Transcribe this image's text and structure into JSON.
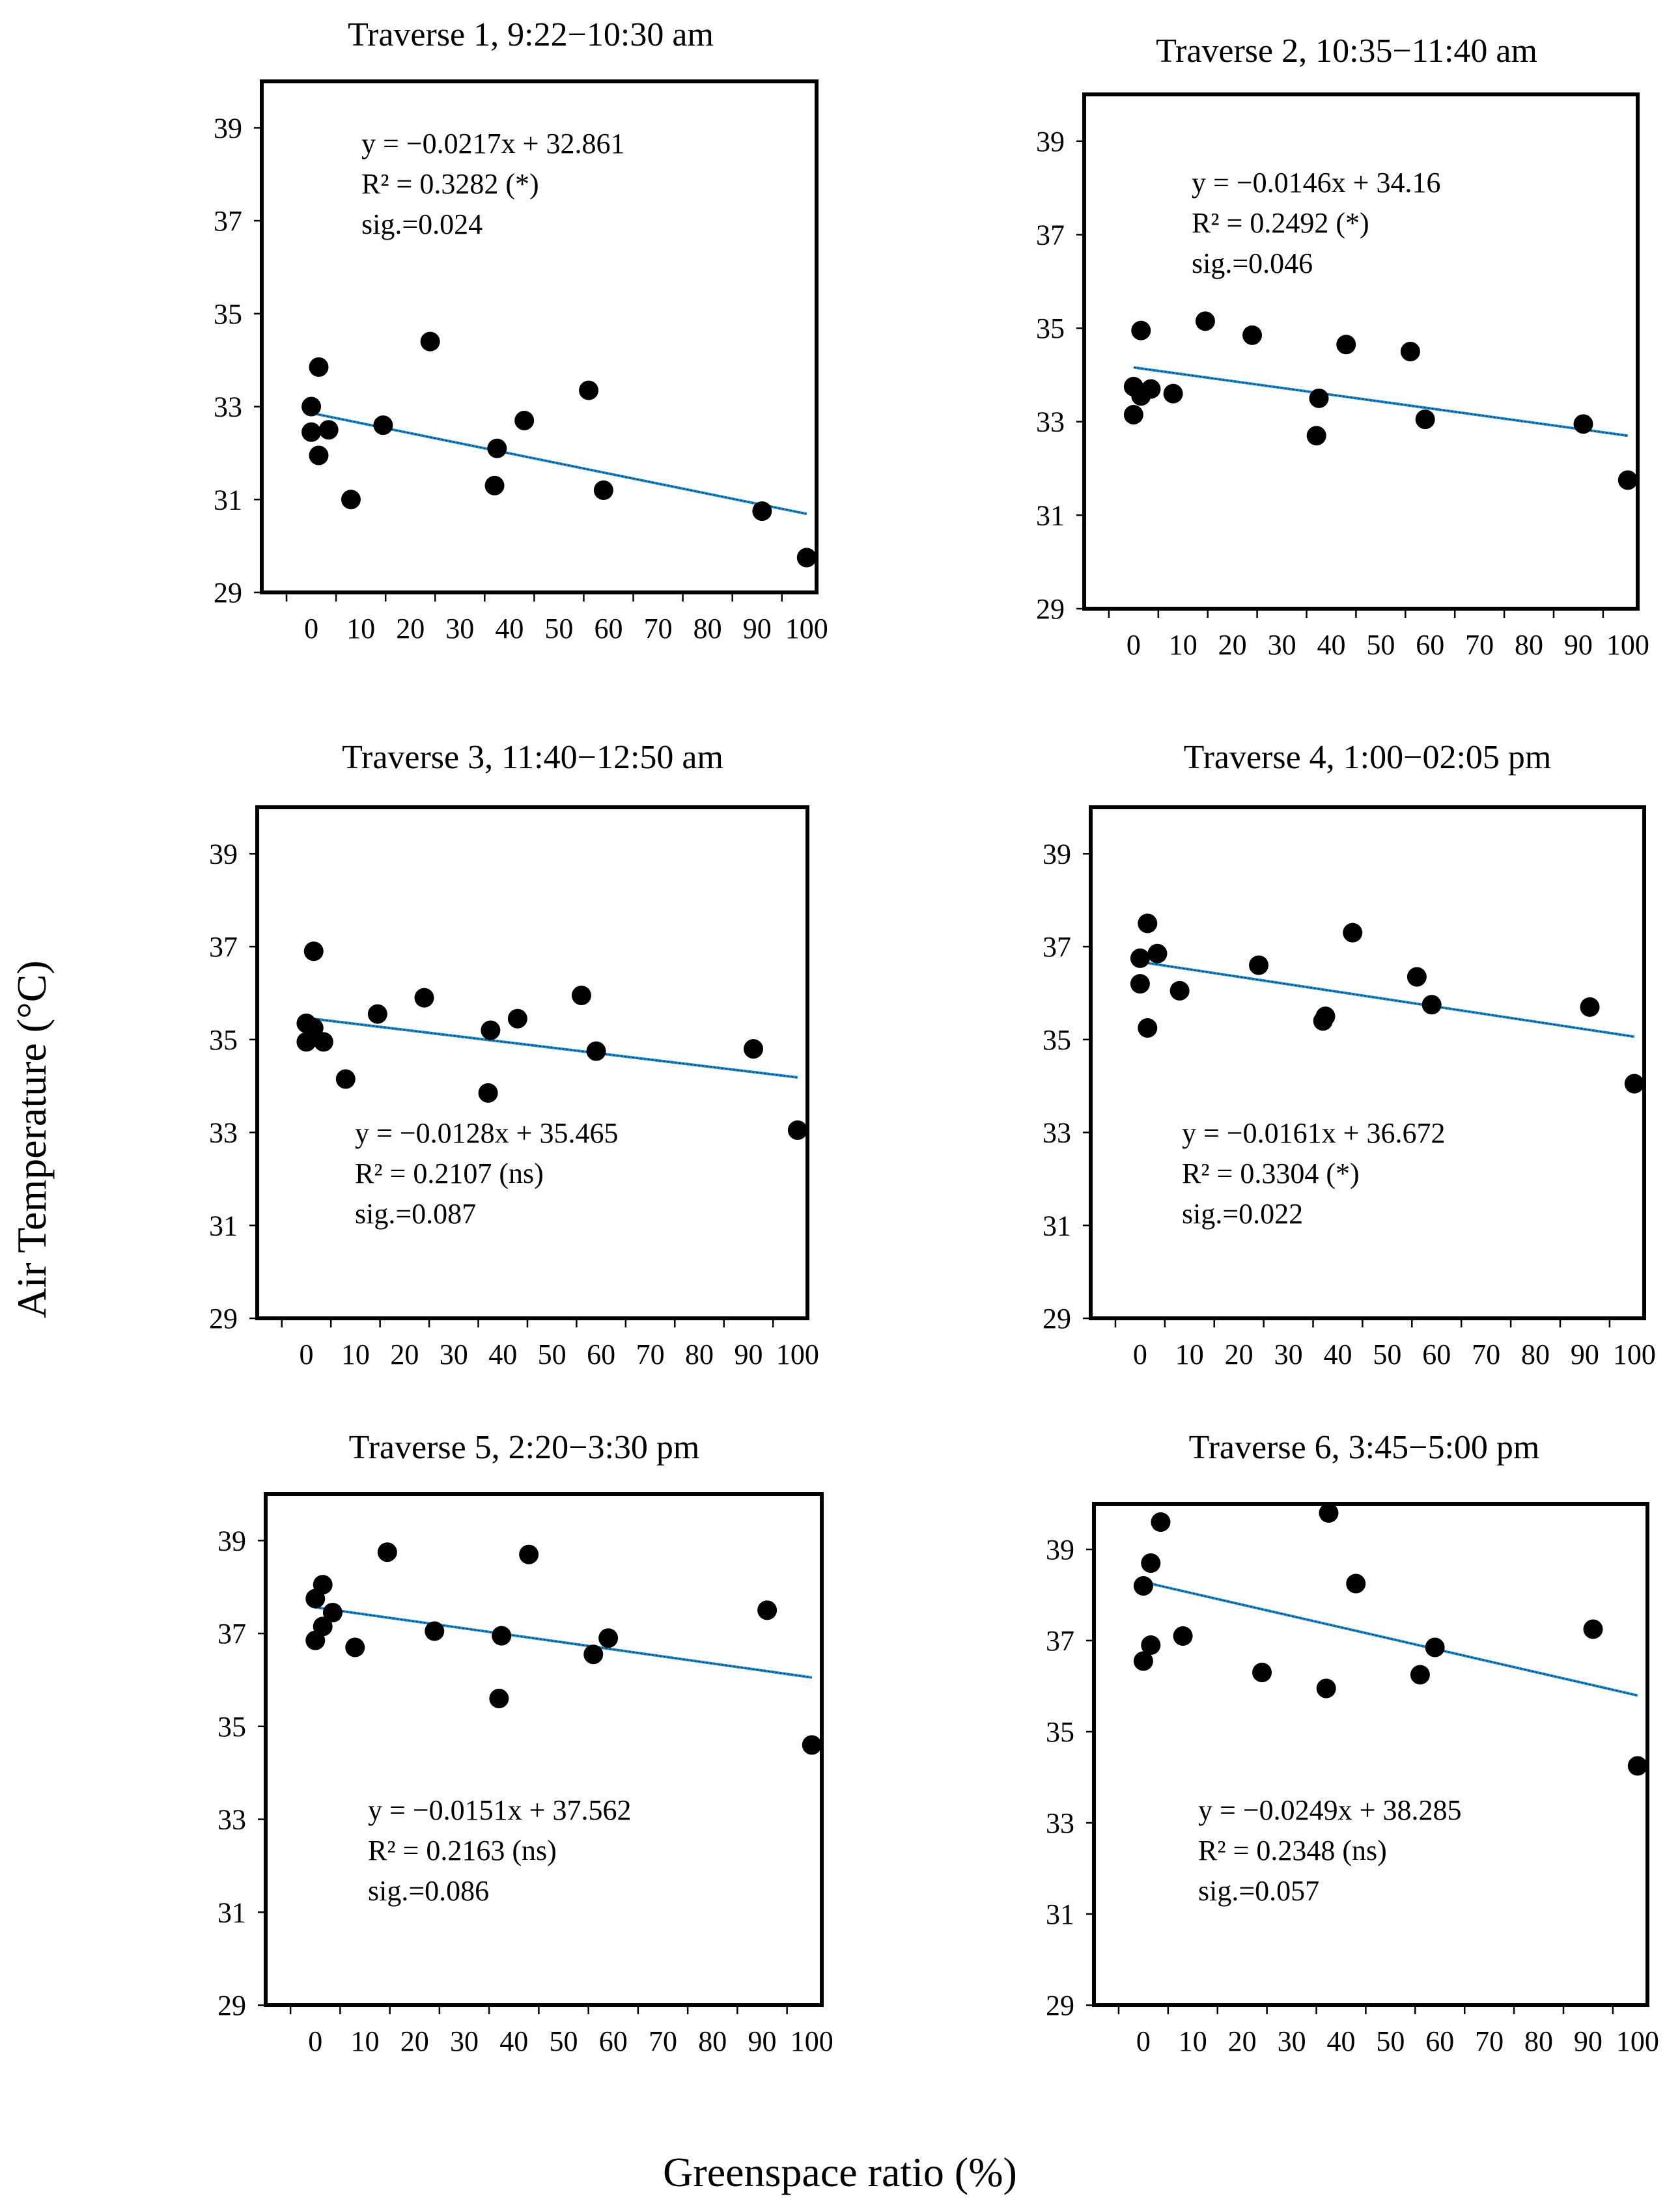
{
  "figure": {
    "ylabel": "Air Temperature (°C)",
    "xlabel": "Greenspace ratio (%)"
  },
  "chart_data": [
    {
      "type": "scatter",
      "title": "Traverse 1, 9:22−10:30 am",
      "xlim": [
        -10,
        102
      ],
      "ylim": [
        29,
        40
      ],
      "x_ticks": [
        0,
        10,
        20,
        30,
        40,
        50,
        60,
        70,
        80,
        90,
        100
      ],
      "y_ticks": [
        29,
        31,
        33,
        35,
        37,
        39
      ],
      "trend": {
        "slope": -0.0217,
        "intercept": 32.861
      },
      "annotation": [
        "y = −0.0217x + 32.861",
        "R² = 0.3282 (*)",
        "sig.=0.024"
      ],
      "points": [
        {
          "x": 0,
          "y": 33.0
        },
        {
          "x": 1.5,
          "y": 33.85
        },
        {
          "x": 0,
          "y": 32.45
        },
        {
          "x": 3.5,
          "y": 32.5
        },
        {
          "x": 1.5,
          "y": 31.95
        },
        {
          "x": 8,
          "y": 31.0
        },
        {
          "x": 14.5,
          "y": 32.6
        },
        {
          "x": 24,
          "y": 34.4
        },
        {
          "x": 37.5,
          "y": 32.1
        },
        {
          "x": 37,
          "y": 31.3
        },
        {
          "x": 43,
          "y": 32.7
        },
        {
          "x": 56,
          "y": 33.35
        },
        {
          "x": 59,
          "y": 31.2
        },
        {
          "x": 91,
          "y": 30.75
        },
        {
          "x": 100,
          "y": 29.75
        }
      ]
    },
    {
      "type": "scatter",
      "title": "Traverse 2, 10:35−11:40 am",
      "xlim": [
        -10,
        102
      ],
      "ylim": [
        29,
        40
      ],
      "x_ticks": [
        0,
        10,
        20,
        30,
        40,
        50,
        60,
        70,
        80,
        90,
        100
      ],
      "y_ticks": [
        29,
        31,
        33,
        35,
        37,
        39
      ],
      "trend": {
        "slope": -0.0146,
        "intercept": 34.16
      },
      "annotation": [
        "y = −0.0146x + 34.16",
        "R² = 0.2492 (*)",
        "sig.=0.046"
      ],
      "points": [
        {
          "x": 1.5,
          "y": 34.95
        },
        {
          "x": 0,
          "y": 33.75
        },
        {
          "x": 1.5,
          "y": 33.55
        },
        {
          "x": 3.5,
          "y": 33.7
        },
        {
          "x": 0,
          "y": 33.15
        },
        {
          "x": 8,
          "y": 33.6
        },
        {
          "x": 14.5,
          "y": 35.15
        },
        {
          "x": 24,
          "y": 34.85
        },
        {
          "x": 37.5,
          "y": 33.5
        },
        {
          "x": 37,
          "y": 32.7
        },
        {
          "x": 43,
          "y": 34.65
        },
        {
          "x": 56,
          "y": 34.5
        },
        {
          "x": 59,
          "y": 33.05
        },
        {
          "x": 91,
          "y": 32.95
        },
        {
          "x": 100,
          "y": 31.75
        }
      ]
    },
    {
      "type": "scatter",
      "title": "Traverse 3, 11:40−12:50 am",
      "xlim": [
        -10,
        102
      ],
      "ylim": [
        29,
        40
      ],
      "x_ticks": [
        0,
        10,
        20,
        30,
        40,
        50,
        60,
        70,
        80,
        90,
        100
      ],
      "y_ticks": [
        29,
        31,
        33,
        35,
        37,
        39
      ],
      "trend": {
        "slope": -0.0128,
        "intercept": 35.465
      },
      "annotation": [
        "y = −0.0128x + 35.465",
        "R² = 0.2107 (ns)",
        "sig.=0.087"
      ],
      "points": [
        {
          "x": 1.5,
          "y": 36.9
        },
        {
          "x": 0,
          "y": 35.35
        },
        {
          "x": 1.5,
          "y": 35.25
        },
        {
          "x": 0,
          "y": 34.95
        },
        {
          "x": 3.5,
          "y": 34.95
        },
        {
          "x": 8,
          "y": 34.15
        },
        {
          "x": 14.5,
          "y": 35.55
        },
        {
          "x": 24,
          "y": 35.9
        },
        {
          "x": 37.5,
          "y": 35.2
        },
        {
          "x": 37,
          "y": 33.85
        },
        {
          "x": 43,
          "y": 35.45
        },
        {
          "x": 56,
          "y": 35.95
        },
        {
          "x": 59,
          "y": 34.75
        },
        {
          "x": 91,
          "y": 34.8
        },
        {
          "x": 100,
          "y": 33.05
        }
      ]
    },
    {
      "type": "scatter",
      "title": "Traverse 4, 1:00−02:05 pm",
      "xlim": [
        -10,
        102
      ],
      "ylim": [
        29,
        40
      ],
      "x_ticks": [
        0,
        10,
        20,
        30,
        40,
        50,
        60,
        70,
        80,
        90,
        100
      ],
      "y_ticks": [
        29,
        31,
        33,
        35,
        37,
        39
      ],
      "trend": {
        "slope": -0.0161,
        "intercept": 36.672
      },
      "annotation": [
        "y = −0.0161x + 36.672",
        "R² = 0.3304 (*)",
        "sig.=0.022"
      ],
      "points": [
        {
          "x": 1.5,
          "y": 37.5
        },
        {
          "x": 0,
          "y": 36.75
        },
        {
          "x": 3.5,
          "y": 36.85
        },
        {
          "x": 0,
          "y": 36.2
        },
        {
          "x": 1.5,
          "y": 35.25
        },
        {
          "x": 8,
          "y": 36.05
        },
        {
          "x": 24,
          "y": 36.6
        },
        {
          "x": 37.5,
          "y": 35.5
        },
        {
          "x": 37,
          "y": 35.4
        },
        {
          "x": 43,
          "y": 37.3
        },
        {
          "x": 56,
          "y": 36.35
        },
        {
          "x": 59,
          "y": 35.75
        },
        {
          "x": 91,
          "y": 35.7
        },
        {
          "x": 100,
          "y": 34.05
        }
      ]
    },
    {
      "type": "scatter",
      "title": "Traverse 5, 2:20−3:30 pm",
      "xlim": [
        -10,
        102
      ],
      "ylim": [
        29,
        40
      ],
      "x_ticks": [
        0,
        10,
        20,
        30,
        40,
        50,
        60,
        70,
        80,
        90,
        100
      ],
      "y_ticks": [
        29,
        31,
        33,
        35,
        37,
        39
      ],
      "trend": {
        "slope": -0.0151,
        "intercept": 37.562
      },
      "annotation": [
        "y = −0.0151x + 37.562",
        "R² = 0.2163 (ns)",
        "sig.=0.086"
      ],
      "points": [
        {
          "x": 1.5,
          "y": 38.05
        },
        {
          "x": 0,
          "y": 37.75
        },
        {
          "x": 3.5,
          "y": 37.45
        },
        {
          "x": 1.5,
          "y": 37.15
        },
        {
          "x": 0,
          "y": 36.85
        },
        {
          "x": 8,
          "y": 36.7
        },
        {
          "x": 14.5,
          "y": 38.75
        },
        {
          "x": 24,
          "y": 37.05
        },
        {
          "x": 37.5,
          "y": 36.95
        },
        {
          "x": 37,
          "y": 35.6
        },
        {
          "x": 43,
          "y": 38.7
        },
        {
          "x": 56,
          "y": 36.55
        },
        {
          "x": 59,
          "y": 36.9
        },
        {
          "x": 91,
          "y": 37.5
        },
        {
          "x": 100,
          "y": 34.6
        }
      ]
    },
    {
      "type": "scatter",
      "title": "Traverse 6, 3:45−5:00 pm",
      "xlim": [
        -10,
        102
      ],
      "ylim": [
        29,
        40
      ],
      "x_ticks": [
        0,
        10,
        20,
        30,
        40,
        50,
        60,
        70,
        80,
        90,
        100
      ],
      "y_ticks": [
        29,
        31,
        33,
        35,
        37,
        39
      ],
      "trend": {
        "slope": -0.0249,
        "intercept": 38.285
      },
      "annotation": [
        "y = −0.0249x + 38.285",
        "R² = 0.2348 (ns)",
        "sig.=0.057"
      ],
      "points": [
        {
          "x": 3.5,
          "y": 39.6
        },
        {
          "x": 1.5,
          "y": 38.7
        },
        {
          "x": 0,
          "y": 38.2
        },
        {
          "x": 1.5,
          "y": 36.9
        },
        {
          "x": 0,
          "y": 36.55
        },
        {
          "x": 8,
          "y": 37.1
        },
        {
          "x": 24,
          "y": 36.3
        },
        {
          "x": 37.5,
          "y": 39.8
        },
        {
          "x": 37,
          "y": 35.95
        },
        {
          "x": 43,
          "y": 38.25
        },
        {
          "x": 56,
          "y": 36.25
        },
        {
          "x": 59,
          "y": 36.85
        },
        {
          "x": 91,
          "y": 37.25
        },
        {
          "x": 100,
          "y": 34.25
        }
      ]
    }
  ]
}
